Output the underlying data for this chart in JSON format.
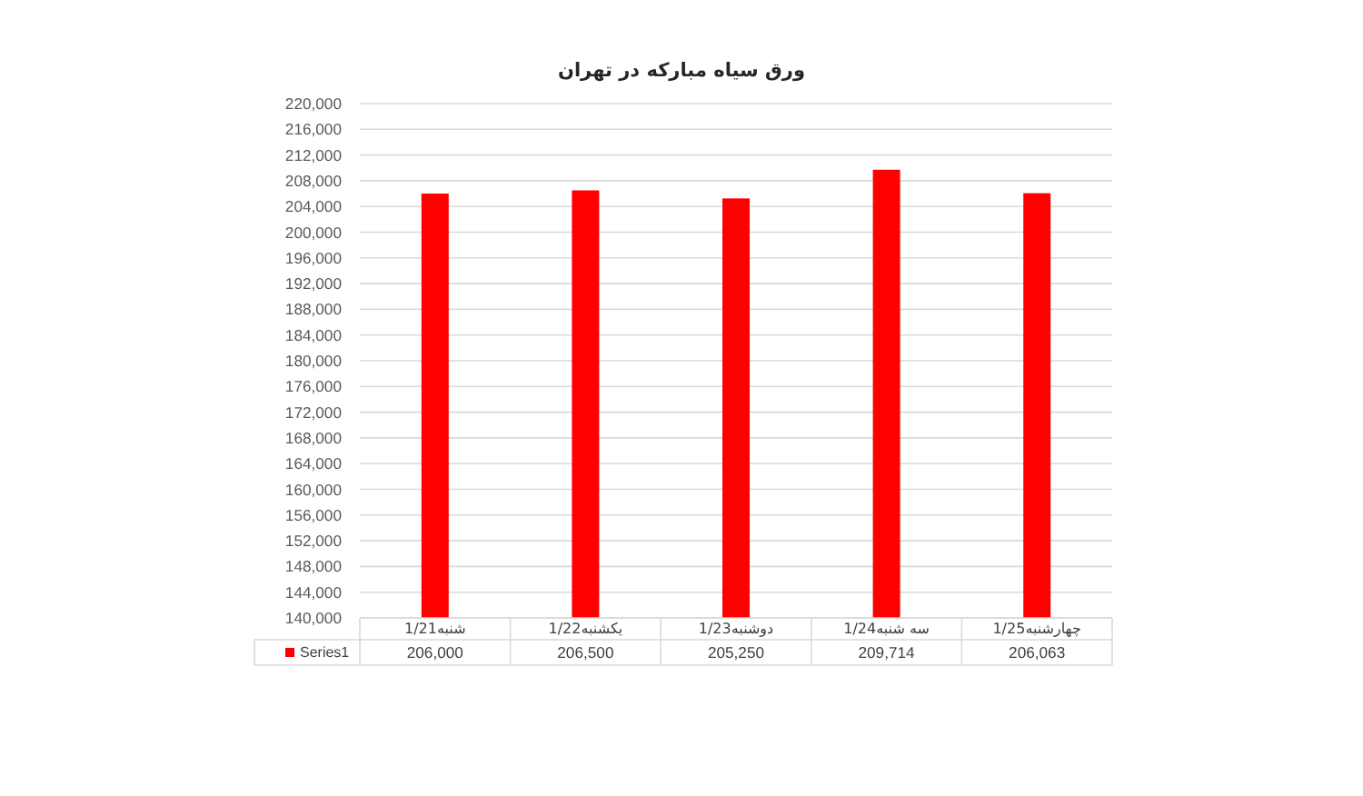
{
  "chart_data": {
    "type": "bar",
    "title": "ورق سیاه مبارکه در تهران",
    "categories": [
      "شنبه1/21",
      "یکشنبه1/22",
      "دوشنبه1/23",
      "سه شنبه1/24",
      "چهارشنبه1/25"
    ],
    "series": [
      {
        "name": "Series1",
        "color": "#ff0000",
        "values": [
          206000,
          206500,
          205250,
          209714,
          206063
        ],
        "value_labels": [
          "206,000",
          "206,500",
          "205,250",
          "209,714",
          "206,063"
        ]
      }
    ],
    "ylim": [
      140000,
      220000
    ],
    "yticks": [
      {
        "value": 140000,
        "label": "140,000"
      },
      {
        "value": 144000,
        "label": "144,000"
      },
      {
        "value": 148000,
        "label": "148,000"
      },
      {
        "value": 152000,
        "label": "152,000"
      },
      {
        "value": 156000,
        "label": "156,000"
      },
      {
        "value": 160000,
        "label": "160,000"
      },
      {
        "value": 164000,
        "label": "164,000"
      },
      {
        "value": 168000,
        "label": "168,000"
      },
      {
        "value": 172000,
        "label": "172,000"
      },
      {
        "value": 176000,
        "label": "176,000"
      },
      {
        "value": 180000,
        "label": "180,000"
      },
      {
        "value": 184000,
        "label": "184,000"
      },
      {
        "value": 188000,
        "label": "188,000"
      },
      {
        "value": 192000,
        "label": "192,000"
      },
      {
        "value": 196000,
        "label": "196,000"
      },
      {
        "value": 200000,
        "label": "200,000"
      },
      {
        "value": 204000,
        "label": "204,000"
      },
      {
        "value": 208000,
        "label": "208,000"
      },
      {
        "value": 212000,
        "label": "212,000"
      },
      {
        "value": 216000,
        "label": "216,000"
      },
      {
        "value": 220000,
        "label": "220,000"
      }
    ],
    "grid": "y",
    "legend": "bottom left"
  }
}
